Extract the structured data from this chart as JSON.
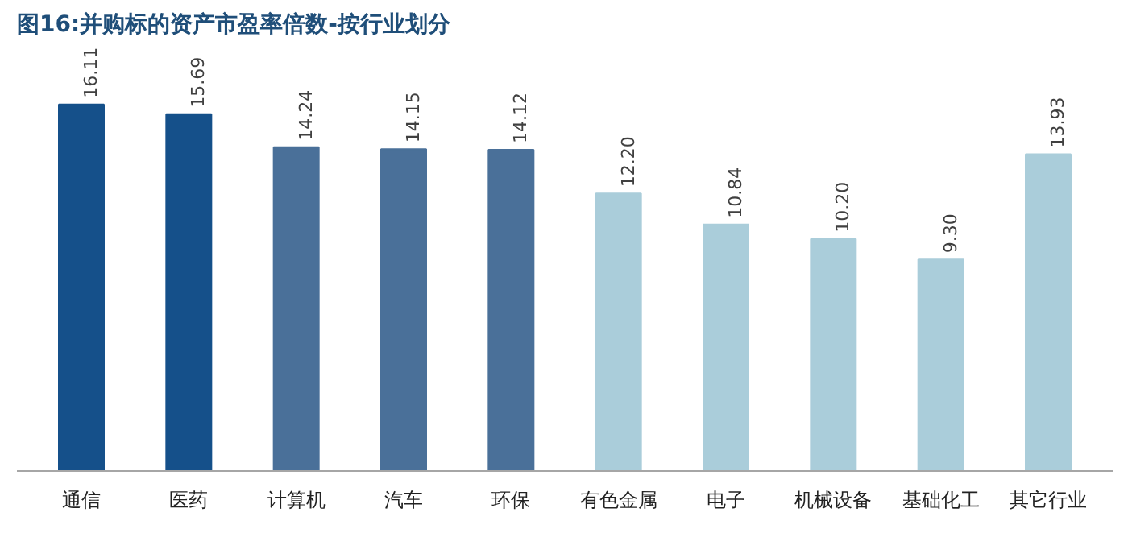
{
  "chart_data": {
    "type": "bar",
    "title": "图16:并购标的资产市盈率倍数-按行业划分",
    "categories": [
      "通信",
      "医药",
      "计算机",
      "汽车",
      "环保",
      "有色金属",
      "电子",
      "机械设备",
      "基础化工",
      "其它行业"
    ],
    "values": [
      16.11,
      15.69,
      14.24,
      14.15,
      14.12,
      12.2,
      10.84,
      10.2,
      9.3,
      13.93
    ],
    "colors": [
      "#15508a",
      "#15508a",
      "#4a7099",
      "#4a7099",
      "#4a7099",
      "#aacdda",
      "#aacdda",
      "#aacdda",
      "#aacdda",
      "#aacdda"
    ],
    "value_labels": [
      "16.11",
      "15.69",
      "14.24",
      "14.15",
      "14.12",
      "12.20",
      "10.84",
      "10.20",
      "9.30",
      "13.93"
    ],
    "grid": false
  }
}
